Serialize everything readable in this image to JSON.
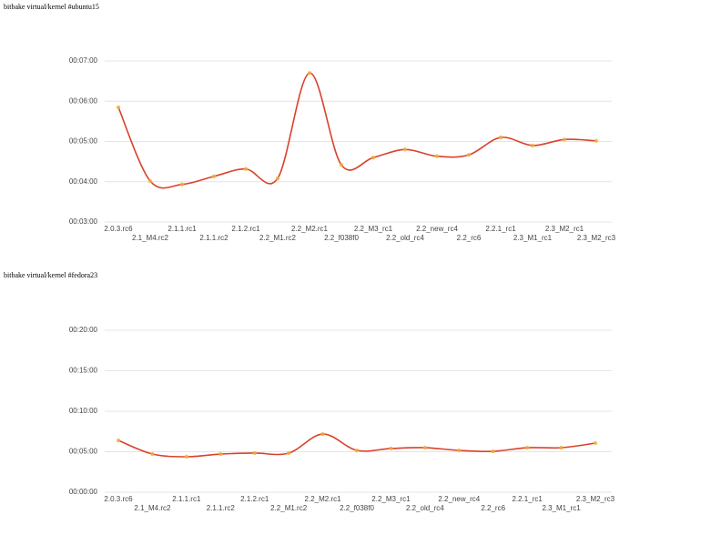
{
  "chart_data": [
    {
      "type": "line",
      "title": "bitbake virtual/kernel #ubuntu15",
      "categories": [
        "2.0.3.rc6",
        "2.1_M4.rc2",
        "2.1.1.rc1",
        "2.1.1.rc2",
        "2.1.2.rc1",
        "2.2_M1.rc2",
        "2.2_M2.rc1",
        "2.2_f038f0",
        "2.2_M3_rc1",
        "2.2_old_rc4",
        "2.2_new_rc4",
        "2.2_rc6",
        "2.2.1_rc1",
        "2.3_M1_rc1",
        "2.3_M2_rc1",
        "2.3_M2_rc3"
      ],
      "values": [
        351,
        241,
        236,
        248,
        259,
        245,
        402,
        265,
        276,
        288,
        278,
        280,
        306,
        294,
        303,
        301
      ],
      "color": "#d9412b",
      "ylim": [
        180,
        420
      ],
      "yticks": [
        {
          "value": 180,
          "label": "00:03:00"
        },
        {
          "value": 240,
          "label": "00:04:00"
        },
        {
          "value": 300,
          "label": "00:05:00"
        },
        {
          "value": 360,
          "label": "00:06:00"
        },
        {
          "value": 420,
          "label": "00:07:00"
        }
      ],
      "grid": true
    },
    {
      "type": "line",
      "title": "bitbake virtual/kernel #fedora23",
      "categories": [
        "2.0.3.rc6",
        "2.1_M4.rc2",
        "2.1.1.rc1",
        "2.1.1.rc2",
        "2.1.2.rc1",
        "2.2_M1.rc2",
        "2.2_M2.rc1",
        "2.2_f038f0",
        "2.2_M3_rc1",
        "2.2_old_rc4",
        "2.2_new_rc4",
        "2.2_rc6",
        "2.2.1_rc1",
        "2.3_M1_rc1",
        "2.3_M2_rc3"
      ],
      "values": [
        384,
        283,
        263,
        283,
        290,
        290,
        431,
        310,
        324,
        330,
        310,
        303,
        330,
        330,
        364
      ],
      "color": "#d9412b",
      "ylim": [
        0,
        1200
      ],
      "yticks": [
        {
          "value": 0,
          "label": "00:00:00"
        },
        {
          "value": 300,
          "label": "00:05:00"
        },
        {
          "value": 600,
          "label": "00:10:00"
        },
        {
          "value": 900,
          "label": "00:15:00"
        },
        {
          "value": 1200,
          "label": "00:20:00"
        }
      ],
      "grid": true
    }
  ]
}
